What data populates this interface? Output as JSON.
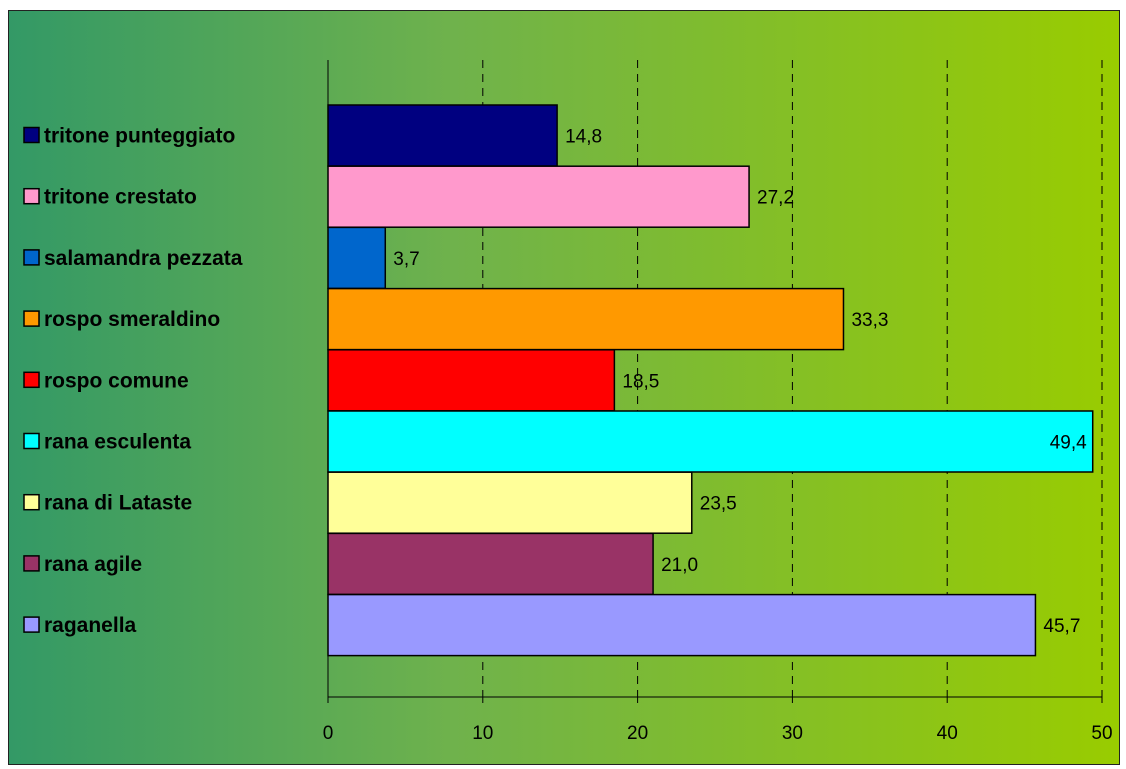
{
  "chart_data": {
    "type": "bar",
    "orientation": "horizontal",
    "title": "",
    "xlabel": "",
    "ylabel": "",
    "xlim": [
      0,
      50
    ],
    "x_ticks": [
      "0",
      "10",
      "20",
      "30",
      "40",
      "50"
    ],
    "grid": "vertical-dashed",
    "legend_position": "left",
    "categories": [
      "tritone punteggiato",
      "tritone crestato",
      "salamandra pezzata",
      "rospo smeraldino",
      "rospo comune",
      "rana esculenta",
      "rana di Lataste",
      "rana agile",
      "raganella"
    ],
    "values": [
      14.8,
      27.2,
      3.7,
      33.3,
      18.5,
      49.4,
      23.5,
      21.0,
      45.7
    ],
    "value_labels": [
      "14,8",
      "27,2",
      "3,7",
      "33,3",
      "18,5",
      "49,4",
      "23,5",
      "21,0",
      "45,7"
    ],
    "colors": [
      "#000080",
      "#ff99cc",
      "#0066cc",
      "#ff9900",
      "#ff0000",
      "#00ffff",
      "#ffff99",
      "#993366",
      "#9999ff"
    ]
  }
}
